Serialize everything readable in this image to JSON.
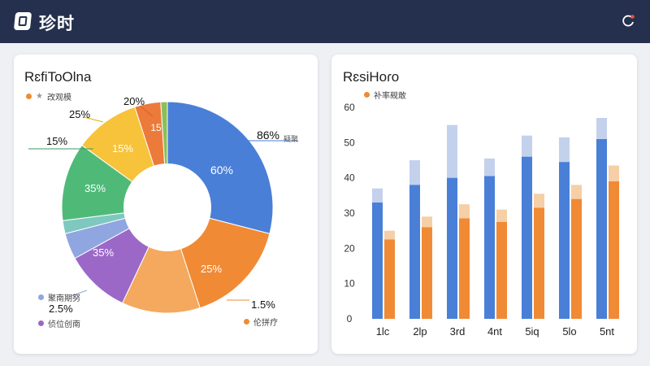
{
  "app": {
    "title": "珍时"
  },
  "left_card": {
    "title": "RɛfiToOlna",
    "legend_star": "★",
    "legend_text": "改观模",
    "bottom_legend": [
      {
        "text": "聚南期努",
        "color": "#8fa6e0"
      },
      {
        "text": "2.5%",
        "color": ""
      },
      {
        "text": "侦位创南",
        "color": "#9b68c8"
      }
    ],
    "right_legend": {
      "text": "疑聚",
      "color": ""
    },
    "bottom_right_legend": {
      "text": "伦拼疗",
      "color": "#f08a35"
    }
  },
  "right_card": {
    "title": "RɛsiHoɾo",
    "legend_text": "补率觋敢"
  },
  "colors": {
    "blue": "#4a7fd8",
    "orange": "#f08a35",
    "light_orange": "#f4a95e",
    "yellow": "#f7c33a",
    "green": "#4fba78",
    "teal": "#7fc8c0",
    "light_blue": "#8fa6e0",
    "purple": "#9b68c8",
    "dark_orange": "#ec7a3a",
    "bar_light": "#c4d1ec",
    "bar_peach": "#f6cfa6"
  },
  "chart_data": [
    {
      "type": "pie",
      "title": "RɛfiToOlna",
      "slices": [
        {
          "label": "60%",
          "value": 29,
          "color": "#4a7fd8"
        },
        {
          "label": "25%",
          "value": 16,
          "color": "#f08a35"
        },
        {
          "label": "",
          "value": 12,
          "color": "#f4a95e"
        },
        {
          "label": "35%",
          "value": 10,
          "color": "#9b68c8"
        },
        {
          "label": "",
          "value": 4,
          "color": "#8fa6e0"
        },
        {
          "label": "",
          "value": 2,
          "color": "#7fc8c0"
        },
        {
          "label": "35%",
          "value": 12,
          "color": "#4fba78"
        },
        {
          "label": "15%",
          "value": 10,
          "color": "#f7c33a"
        },
        {
          "label": "15",
          "value": 4,
          "color": "#ec7a3a"
        },
        {
          "label": "",
          "value": 1,
          "color": "#8bbf5a"
        }
      ],
      "callouts": [
        "86%",
        "25%",
        "20%",
        "15%",
        "1.5%"
      ]
    },
    {
      "type": "bar",
      "title": "RɛsiHoɾo",
      "categories": [
        "1lc",
        "2lp",
        "3rd",
        "4nt",
        "5iq",
        "5lo",
        "5nt"
      ],
      "series": [
        {
          "values": [
            33,
            38,
            40,
            40.5,
            46,
            44.5,
            51
          ],
          "color": "#4a7fd8"
        },
        {
          "values": [
            4,
            7,
            15,
            5,
            6,
            7,
            6
          ],
          "color": "#c4d1ec"
        },
        {
          "values": [
            22.5,
            26,
            28.5,
            27.5,
            31.5,
            34,
            39
          ],
          "color": "#f08a35"
        },
        {
          "values": [
            2.5,
            3,
            4,
            3.5,
            4,
            4,
            4.5
          ],
          "color": "#f6cfa6"
        }
      ],
      "yticks": [
        "0",
        "10",
        "20",
        "30",
        "40",
        "50",
        "60"
      ],
      "ylim": [
        0,
        60
      ]
    }
  ]
}
